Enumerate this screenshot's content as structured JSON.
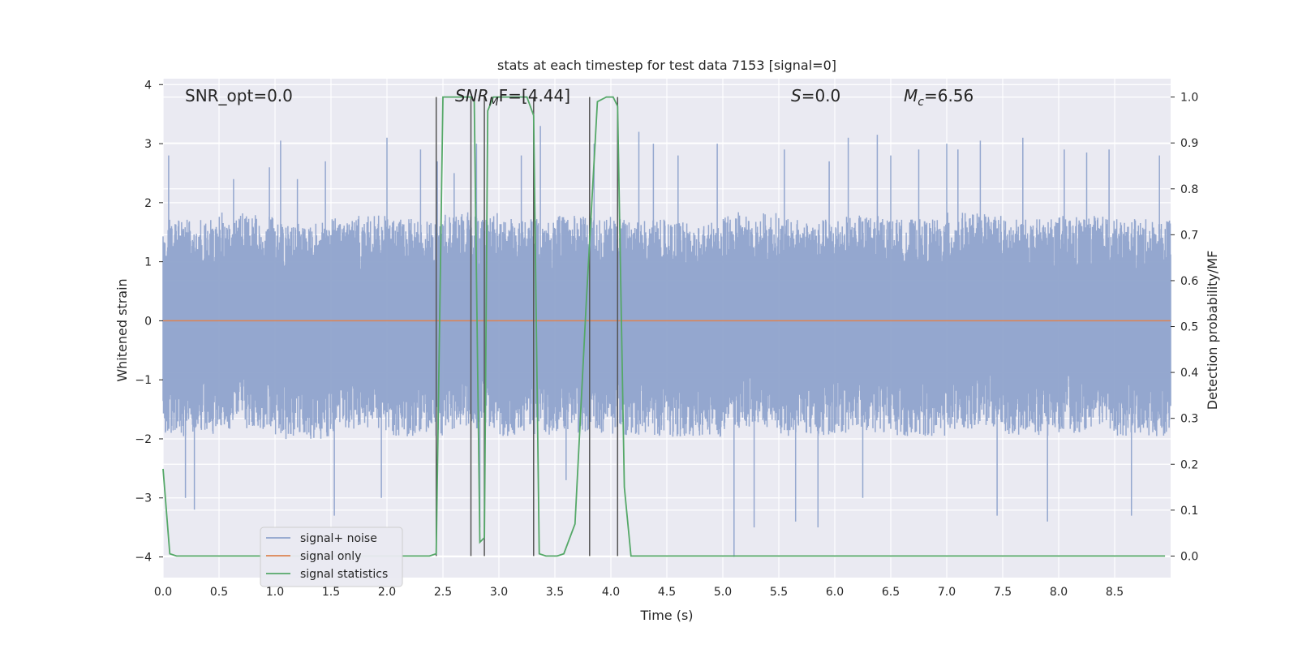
{
  "chart_data": {
    "type": "line",
    "title": "stats at each timestep for test data 7153 [signal=0]",
    "xlabel": "Time (s)",
    "ylabel_left": "Whitened strain",
    "ylabel_right": "Detection probability/MF",
    "xlim": [
      0.0,
      9.0
    ],
    "ylim_left": [
      -4.35,
      4.1
    ],
    "ylim_right": [
      -0.047,
      1.04
    ],
    "x_ticks": [
      "0.0",
      "0.5",
      "1.0",
      "1.5",
      "2.0",
      "2.5",
      "3.0",
      "3.5",
      "4.0",
      "4.5",
      "5.0",
      "5.5",
      "6.0",
      "6.5",
      "7.0",
      "7.5",
      "8.0",
      "8.5"
    ],
    "y_ticks_left": [
      "4",
      "3",
      "2",
      "1",
      "0",
      "−1",
      "−2",
      "−3",
      "−4"
    ],
    "y_ticks_right": [
      "1.0",
      "0.9",
      "0.8",
      "0.7",
      "0.6",
      "0.5",
      "0.4",
      "0.3",
      "0.2",
      "0.1",
      "0.0"
    ],
    "grid": true,
    "legend_position": "lower-left",
    "annotations": [
      {
        "id": "snr-opt",
        "text": "SNR_opt=0.0"
      },
      {
        "id": "snr-mf",
        "text": "SNR_MF=[4.44]",
        "base": "SNR",
        "sub": "M",
        "rest": "F=[4.44]"
      },
      {
        "id": "s-stat",
        "text": "S=0.0",
        "base": "S",
        "rest": "=0.0"
      },
      {
        "id": "mc",
        "text": "M_c=6.56",
        "base": "M",
        "sub": "c",
        "rest": "=6.56"
      }
    ],
    "series": [
      {
        "name": "signal+ noise",
        "axis": "left",
        "color": "#8fa3cc",
        "description_kind": "noise band",
        "band_low": [
          -1.7,
          -1.6,
          -1.75,
          -1.65,
          -1.7,
          -1.6,
          -1.7,
          -1.65,
          -1.7,
          -1.75,
          -1.6,
          -1.7,
          -1.65,
          -1.7,
          -1.6,
          -1.7,
          -1.65,
          -1.7
        ],
        "band_high": [
          1.5,
          1.6,
          1.45,
          1.55,
          1.5,
          1.6,
          1.5,
          1.55,
          1.5,
          1.45,
          1.6,
          1.5,
          1.55,
          1.5,
          1.6,
          1.5,
          1.55,
          1.5
        ],
        "peaks": [
          [
            0.05,
            2.8
          ],
          [
            0.2,
            -3.0
          ],
          [
            0.28,
            -3.2
          ],
          [
            0.63,
            2.4
          ],
          [
            0.95,
            2.6
          ],
          [
            1.05,
            3.05
          ],
          [
            1.2,
            2.4
          ],
          [
            1.45,
            2.7
          ],
          [
            1.53,
            -3.3
          ],
          [
            1.95,
            -3.0
          ],
          [
            2.0,
            3.1
          ],
          [
            2.3,
            2.9
          ],
          [
            2.45,
            2.7
          ],
          [
            2.6,
            2.5
          ],
          [
            2.8,
            3.0
          ],
          [
            2.83,
            -3.5
          ],
          [
            3.2,
            2.8
          ],
          [
            3.37,
            3.3
          ],
          [
            3.6,
            -2.7
          ],
          [
            3.85,
            3.0
          ],
          [
            4.25,
            3.2
          ],
          [
            4.38,
            3.0
          ],
          [
            4.6,
            2.8
          ],
          [
            4.95,
            3.0
          ],
          [
            5.1,
            -4.0
          ],
          [
            5.28,
            -3.5
          ],
          [
            5.55,
            2.9
          ],
          [
            5.65,
            -3.4
          ],
          [
            5.85,
            -3.5
          ],
          [
            5.95,
            2.7
          ],
          [
            6.12,
            3.1
          ],
          [
            6.25,
            -3.0
          ],
          [
            6.38,
            3.15
          ],
          [
            6.5,
            2.8
          ],
          [
            6.75,
            2.9
          ],
          [
            7.0,
            3.0
          ],
          [
            7.1,
            2.9
          ],
          [
            7.3,
            3.05
          ],
          [
            7.45,
            -3.3
          ],
          [
            7.68,
            3.1
          ],
          [
            7.9,
            -3.4
          ],
          [
            8.05,
            2.9
          ],
          [
            8.25,
            2.85
          ],
          [
            8.45,
            2.9
          ],
          [
            8.65,
            -3.3
          ],
          [
            8.9,
            2.8
          ]
        ]
      },
      {
        "name": "signal only",
        "axis": "left",
        "color": "#dd8452",
        "x": [
          0.0,
          9.0
        ],
        "y": [
          0.0,
          0.0
        ]
      },
      {
        "name": "signal statistics",
        "axis": "right",
        "color": "#55a868",
        "x": [
          0.0,
          0.06,
          0.12,
          0.5,
          1.0,
          1.5,
          2.0,
          2.38,
          2.44,
          2.5,
          2.75,
          2.78,
          2.83,
          2.87,
          2.9,
          2.95,
          3.25,
          3.31,
          3.36,
          3.42,
          3.52,
          3.58,
          3.68,
          3.78,
          3.88,
          3.96,
          4.02,
          4.06,
          4.12,
          4.18,
          5.0,
          6.0,
          7.0,
          8.0,
          8.95
        ],
        "y": [
          0.19,
          0.005,
          0.0,
          0.0,
          0.0,
          0.0,
          0.0,
          0.0,
          0.005,
          1.0,
          1.0,
          0.99,
          0.03,
          0.04,
          0.97,
          1.0,
          1.0,
          0.96,
          0.005,
          0.0,
          0.0,
          0.005,
          0.07,
          0.55,
          0.99,
          1.0,
          1.0,
          0.98,
          0.15,
          0.0,
          0.0,
          0.0,
          0.0,
          0.0,
          0.0
        ]
      }
    ],
    "vertical_markers": [
      2.44,
      2.75,
      2.87,
      3.31,
      3.81,
      4.06
    ],
    "marker_color": "#555555"
  }
}
